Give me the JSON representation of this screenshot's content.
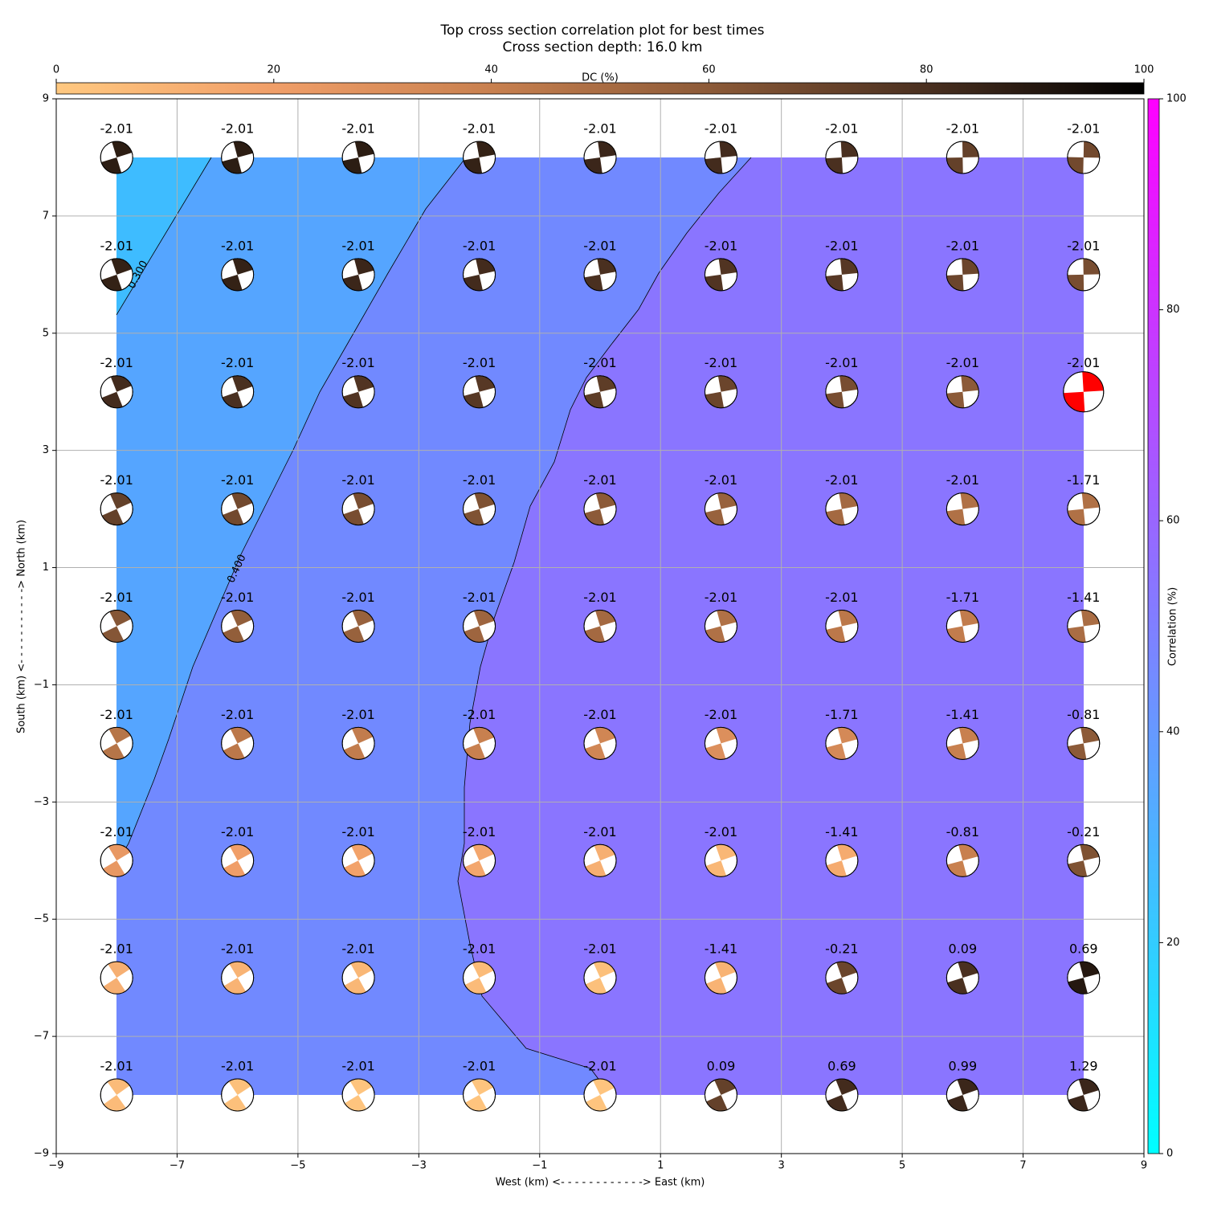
{
  "chart_data": {
    "type": "beachball",
    "title": "Top cross section correlation plot for best times",
    "subtitle": "Cross section depth: 16.0 km",
    "xlabel": "West (km) <- - - - - - - - - - - -> East (km)",
    "ylabel": "South (km) <- - - - - - - - - - -> North (km)",
    "xlim": [
      -9,
      9
    ],
    "ylim": [
      -9,
      9
    ],
    "xticks": [
      {
        "value": -9,
        "label": "−9"
      },
      {
        "value": -7,
        "label": "−7"
      },
      {
        "value": -5,
        "label": "−5"
      },
      {
        "value": -3,
        "label": "−3"
      },
      {
        "value": -1,
        "label": "−1"
      },
      1,
      3,
      5,
      7,
      9
    ],
    "yticks": [
      {
        "value": -9,
        "label": "−9"
      },
      {
        "value": -7,
        "label": "−7"
      },
      {
        "value": -5,
        "label": "−5"
      },
      {
        "value": -3,
        "label": "−3"
      },
      {
        "value": -1,
        "label": "−1"
      },
      1,
      3,
      5,
      7,
      9
    ],
    "grid": true,
    "x": [
      -8,
      -6,
      -4,
      -2,
      0,
      2,
      4,
      6,
      8
    ],
    "y": [
      8,
      6,
      4,
      2,
      0,
      -2,
      -4,
      -6,
      -8
    ],
    "time_shifts": [
      [
        -2.01,
        -2.01,
        -2.01,
        -2.01,
        -2.01,
        -2.01,
        -2.01,
        -2.01,
        -2.01
      ],
      [
        -2.01,
        -2.01,
        -2.01,
        -2.01,
        -2.01,
        -2.01,
        -2.01,
        -2.01,
        -2.01
      ],
      [
        -2.01,
        -2.01,
        -2.01,
        -2.01,
        -2.01,
        -2.01,
        -2.01,
        -2.01,
        -2.01
      ],
      [
        -2.01,
        -2.01,
        -2.01,
        -2.01,
        -2.01,
        -2.01,
        -2.01,
        -2.01,
        -1.71
      ],
      [
        -2.01,
        -2.01,
        -2.01,
        -2.01,
        -2.01,
        -2.01,
        -2.01,
        -1.71,
        -1.41
      ],
      [
        -2.01,
        -2.01,
        -2.01,
        -2.01,
        -2.01,
        -2.01,
        -1.71,
        -1.41,
        -0.81
      ],
      [
        -2.01,
        -2.01,
        -2.01,
        -2.01,
        -2.01,
        -2.01,
        -1.41,
        -0.81,
        -0.21
      ],
      [
        -2.01,
        -2.01,
        -2.01,
        -2.01,
        -2.01,
        -1.41,
        -0.21,
        0.09,
        0.69
      ],
      [
        -2.01,
        -2.01,
        -2.01,
        -2.01,
        -2.01,
        0.09,
        0.69,
        0.99,
        1.29
      ]
    ],
    "dc": [
      [
        88,
        88,
        88,
        86,
        84,
        82,
        80,
        72,
        68
      ],
      [
        86,
        86,
        84,
        82,
        80,
        78,
        76,
        70,
        66
      ],
      [
        82,
        80,
        78,
        76,
        74,
        70,
        66,
        60,
        60
      ],
      [
        72,
        68,
        66,
        64,
        60,
        56,
        52,
        48,
        48
      ],
      [
        62,
        58,
        56,
        54,
        52,
        48,
        44,
        42,
        50
      ],
      [
        46,
        44,
        42,
        40,
        36,
        30,
        34,
        40,
        60
      ],
      [
        24,
        20,
        18,
        16,
        12,
        8,
        14,
        40,
        64
      ],
      [
        12,
        10,
        8,
        6,
        4,
        10,
        70,
        80,
        90
      ],
      [
        6,
        4,
        2,
        2,
        2,
        72,
        82,
        84,
        84
      ]
    ],
    "best": {
      "x": 8,
      "y": 4,
      "color": "#ff0000"
    },
    "dc_colorbar": {
      "label": "DC (%)",
      "lim": [
        0,
        100
      ],
      "ticks": [
        0,
        20,
        40,
        60,
        80,
        100
      ],
      "colors": [
        "#ffc880",
        "#f09e68",
        "#c8804f",
        "#8c5a38",
        "#4a3020",
        "#000000"
      ]
    },
    "corr_colorbar": {
      "label": "Correlation (%)",
      "lim": [
        0,
        100
      ],
      "ticks": [
        0,
        20,
        40,
        60,
        80,
        100
      ],
      "colors": [
        "#00ffff",
        "#ff00ff"
      ]
    },
    "contour_labels": [
      "0.300",
      "0.400"
    ]
  }
}
